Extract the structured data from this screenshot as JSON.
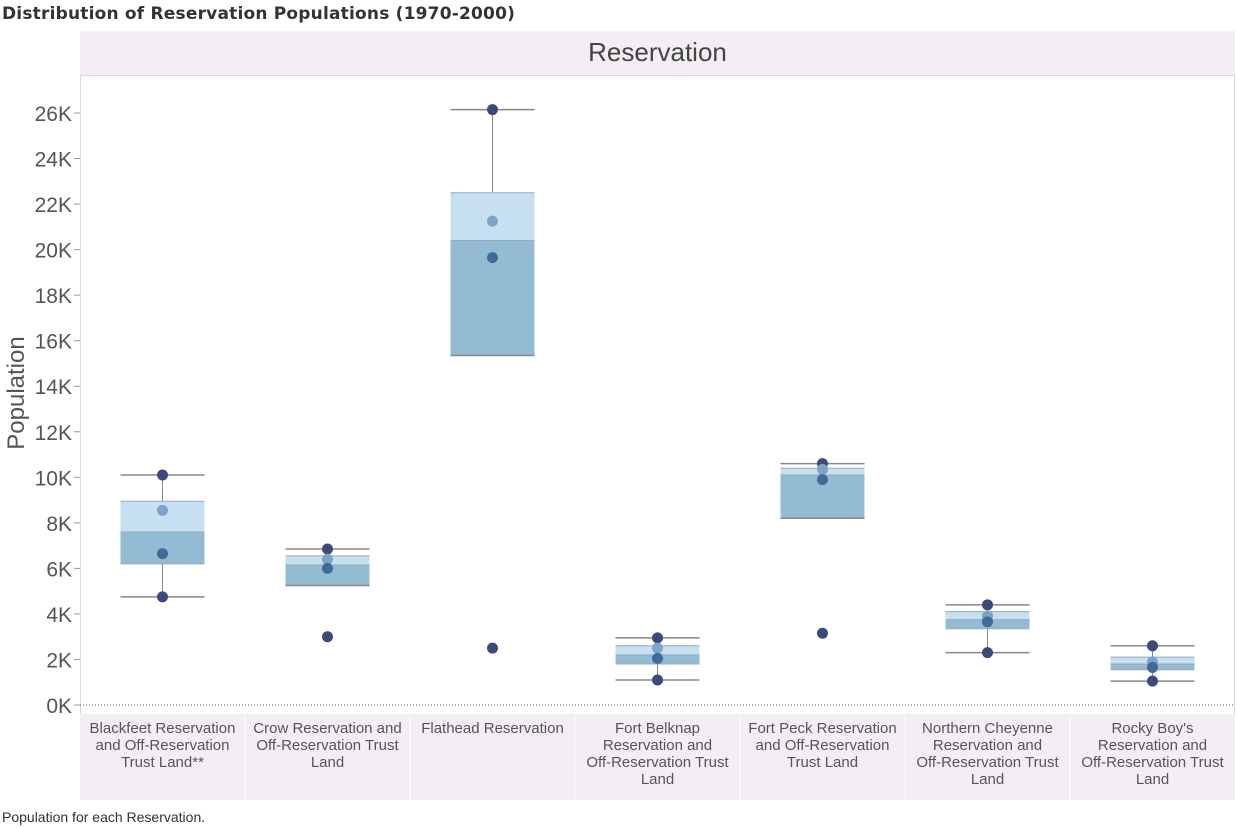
{
  "title": "Distribution of Reservation Populations (1970-2000)",
  "footer": "Population for each Reservation.",
  "colors": {
    "header_bg": "#f3eef3",
    "upper_box": "#c6e0f1",
    "lower_box": "#93bcd3",
    "dot_dark": "#3b4a78",
    "dot_mid": "#3e6b97",
    "dot_light": "#7fa3c8",
    "whisker": "#888888"
  },
  "chart_data": {
    "type": "box",
    "header": "Reservation",
    "ylabel": "Population",
    "ylim": [
      0,
      26500
    ],
    "yticks": [
      0,
      2000,
      4000,
      6000,
      8000,
      10000,
      12000,
      14000,
      16000,
      18000,
      20000,
      22000,
      24000,
      26000
    ],
    "ytick_labels": [
      "0K",
      "2K",
      "4K",
      "6K",
      "8K",
      "10K",
      "12K",
      "14K",
      "16K",
      "18K",
      "20K",
      "22K",
      "24K",
      "26K"
    ],
    "categories": [
      {
        "label_lines": [
          "Blackfeet Reservation",
          "and Off-Reservation",
          "Trust Land**"
        ],
        "whisker_low": 4750,
        "q1": 6200,
        "median": 7600,
        "q3": 8950,
        "whisker_high": 10100,
        "points": [
          {
            "value": 10100,
            "shade": "dark"
          },
          {
            "value": 8550,
            "shade": "light"
          },
          {
            "value": 6650,
            "shade": "mid"
          },
          {
            "value": 4750,
            "shade": "dark"
          }
        ]
      },
      {
        "label_lines": [
          "Crow Reservation and",
          "Off-Reservation Trust",
          "Land"
        ],
        "whisker_low": 5250,
        "q1": 5250,
        "median": 6150,
        "q3": 6550,
        "whisker_high": 6850,
        "points": [
          {
            "value": 6850,
            "shade": "dark"
          },
          {
            "value": 6400,
            "shade": "light"
          },
          {
            "value": 6000,
            "shade": "mid"
          },
          {
            "value": 3000,
            "shade": "dark"
          }
        ]
      },
      {
        "label_lines": [
          "Flathead Reservation"
        ],
        "whisker_low": 15350,
        "q1": 15350,
        "median": 20400,
        "q3": 22500,
        "whisker_high": 26150,
        "points": [
          {
            "value": 26150,
            "shade": "dark"
          },
          {
            "value": 21250,
            "shade": "light"
          },
          {
            "value": 19650,
            "shade": "mid"
          },
          {
            "value": 2500,
            "shade": "dark"
          }
        ]
      },
      {
        "label_lines": [
          "Fort Belknap",
          "Reservation and",
          "Off-Reservation Trust",
          "Land"
        ],
        "whisker_low": 1100,
        "q1": 1800,
        "median": 2200,
        "q3": 2600,
        "whisker_high": 2950,
        "points": [
          {
            "value": 2950,
            "shade": "dark"
          },
          {
            "value": 2500,
            "shade": "light"
          },
          {
            "value": 2050,
            "shade": "mid"
          },
          {
            "value": 1100,
            "shade": "dark"
          }
        ]
      },
      {
        "label_lines": [
          "Fort Peck Reservation",
          "and Off-Reservation",
          "Trust Land"
        ],
        "whisker_low": 8200,
        "q1": 8200,
        "median": 10100,
        "q3": 10400,
        "whisker_high": 10600,
        "points": [
          {
            "value": 10600,
            "shade": "dark"
          },
          {
            "value": 10350,
            "shade": "light"
          },
          {
            "value": 9900,
            "shade": "mid"
          },
          {
            "value": 3150,
            "shade": "dark"
          }
        ]
      },
      {
        "label_lines": [
          "Northern Cheyenne",
          "Reservation and",
          "Off-Reservation Trust",
          "Land"
        ],
        "whisker_low": 2300,
        "q1": 3350,
        "median": 3750,
        "q3": 4100,
        "whisker_high": 4400,
        "points": [
          {
            "value": 4400,
            "shade": "dark"
          },
          {
            "value": 3900,
            "shade": "light"
          },
          {
            "value": 3650,
            "shade": "mid"
          },
          {
            "value": 2300,
            "shade": "dark"
          }
        ]
      },
      {
        "label_lines": [
          "Rocky Boy's",
          "Reservation and",
          "Off-Reservation Trust",
          "Land"
        ],
        "whisker_low": 1050,
        "q1": 1550,
        "median": 1800,
        "q3": 2100,
        "whisker_high": 2600,
        "points": [
          {
            "value": 2600,
            "shade": "dark"
          },
          {
            "value": 1900,
            "shade": "light"
          },
          {
            "value": 1650,
            "shade": "mid"
          },
          {
            "value": 1050,
            "shade": "dark"
          }
        ]
      }
    ]
  }
}
